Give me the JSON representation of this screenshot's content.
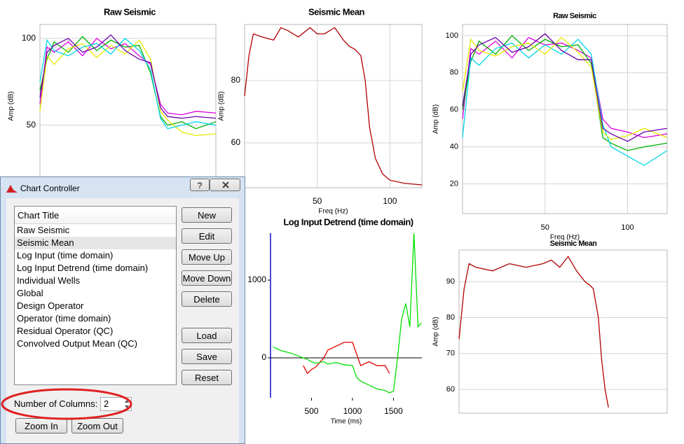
{
  "chart_data": [
    {
      "type": "line",
      "title": "Raw Seismic",
      "y_label": "Amp (dB)",
      "x": [
        0,
        5,
        10,
        20,
        30,
        40,
        50,
        60,
        70,
        78,
        85,
        90,
        100,
        110,
        124
      ],
      "xlim": [
        0,
        124
      ],
      "ylim": [
        14,
        108
      ],
      "yticks": [
        50,
        100
      ],
      "grid": true,
      "series": [
        {
          "color": "#e000e0",
          "values": [
            62,
            95,
            92,
            98,
            90,
            100,
            94,
            97,
            90,
            85,
            62,
            57,
            56,
            58,
            57
          ]
        },
        {
          "color": "#00b000",
          "values": [
            70,
            88,
            98,
            92,
            101,
            93,
            99,
            95,
            96,
            80,
            55,
            50,
            52,
            48,
            52
          ]
        },
        {
          "color": "#e8e800",
          "values": [
            58,
            90,
            85,
            94,
            97,
            89,
            96,
            91,
            99,
            88,
            58,
            53,
            46,
            44,
            45
          ]
        },
        {
          "color": "#00d8e8",
          "values": [
            75,
            99,
            93,
            90,
            95,
            97,
            91,
            100,
            93,
            82,
            54,
            48,
            50,
            52,
            50
          ]
        },
        {
          "color": "#6a00a8",
          "values": [
            66,
            92,
            96,
            100,
            92,
            95,
            102,
            93,
            88,
            86,
            60,
            55,
            54,
            55,
            54
          ]
        }
      ]
    },
    {
      "type": "line",
      "title": "Seismic Mean",
      "x_label": "Freq (Hz)",
      "y_label": "Amp (dB)",
      "x": [
        0,
        3,
        6,
        12,
        20,
        25,
        30,
        37,
        45,
        50,
        55,
        62,
        68,
        72,
        76,
        80,
        83,
        86,
        90,
        95,
        100,
        110,
        122
      ],
      "xlim": [
        0,
        122
      ],
      "ylim": [
        45.6,
        98
      ],
      "xticks": [
        50,
        100
      ],
      "yticks": [
        60,
        80
      ],
      "grid": true,
      "series": [
        {
          "color": "#b00000",
          "values": [
            75,
            88,
            95,
            94,
            93,
            97,
            96,
            94,
            97,
            95,
            95,
            97,
            93,
            91,
            90,
            88,
            80,
            65,
            55,
            50,
            48,
            47,
            46.5
          ]
        }
      ]
    },
    {
      "type": "line",
      "title": "Raw Seismic",
      "x_label": "Freq (Hz)",
      "y_label": "Amp (dB)",
      "x": [
        0,
        5,
        10,
        20,
        30,
        40,
        50,
        60,
        70,
        78,
        85,
        90,
        100,
        110,
        124
      ],
      "xlim": [
        0,
        124
      ],
      "ylim": [
        4,
        106
      ],
      "xticks": [
        50,
        100
      ],
      "yticks": [
        20,
        40,
        60,
        80,
        100
      ],
      "grid": true,
      "series": [
        {
          "color": "#e000e0",
          "values": [
            55,
            93,
            90,
            97,
            88,
            99,
            95,
            96,
            92,
            88,
            55,
            50,
            48,
            45,
            47
          ]
        },
        {
          "color": "#00b000",
          "values": [
            60,
            86,
            97,
            90,
            100,
            92,
            98,
            94,
            95,
            85,
            45,
            42,
            38,
            40,
            42
          ]
        },
        {
          "color": "#00d8e8",
          "values": [
            45,
            88,
            84,
            93,
            96,
            88,
            95,
            90,
            98,
            90,
            52,
            40,
            35,
            30,
            38
          ]
        },
        {
          "color": "#e8e800",
          "values": [
            70,
            98,
            92,
            89,
            94,
            96,
            90,
            99,
            91,
            83,
            48,
            44,
            46,
            50,
            45
          ]
        },
        {
          "color": "#6a00a8",
          "values": [
            62,
            90,
            95,
            99,
            91,
            94,
            101,
            92,
            87,
            87,
            50,
            47,
            43,
            48,
            50
          ]
        }
      ]
    },
    {
      "type": "line",
      "title": "Log Input Detrend (time domain)",
      "x_label": "Time (ms)",
      "x": [
        30,
        140,
        250,
        400,
        450,
        500,
        550,
        650,
        700,
        800,
        900,
        1000,
        1050,
        1100,
        1200,
        1300,
        1400,
        1450,
        1500,
        1550,
        1600,
        1650,
        1700,
        1750,
        1800,
        1840
      ],
      "xlim": [
        0,
        1847
      ],
      "ylim": [
        -514,
        1604
      ],
      "xticks": [
        500,
        1000,
        1500
      ],
      "yticks": [
        0,
        1000
      ],
      "grid": false,
      "zero_line": true,
      "series": [
        {
          "color": "#e00000",
          "values": [
            null,
            null,
            null,
            -100,
            -200,
            -150,
            -120,
            0,
            100,
            150,
            200,
            200,
            50,
            -100,
            -50,
            -100,
            -100,
            -200,
            null,
            null,
            null,
            null,
            null,
            null,
            null,
            null
          ]
        },
        {
          "color": "#00e000",
          "values": [
            140,
            90,
            60,
            0,
            -20,
            -50,
            -70,
            -50,
            -80,
            -60,
            -90,
            -100,
            -250,
            -300,
            -350,
            -400,
            -420,
            -450,
            -430,
            0,
            500,
            700,
            400,
            1600,
            400,
            450
          ]
        }
      ]
    },
    {
      "type": "line",
      "title": "Seismic Mean",
      "y_label": "Amp (dB)",
      "x": [
        0,
        3,
        6,
        10,
        20,
        30,
        40,
        50,
        55,
        60,
        65,
        70,
        75,
        78,
        80,
        83,
        85,
        87,
        89
      ],
      "xlim": [
        0,
        124
      ],
      "ylim": [
        53.4,
        98.8
      ],
      "yticks": [
        60,
        70,
        80,
        90
      ],
      "grid": true,
      "series": [
        {
          "color": "#b00000",
          "values": [
            74,
            88,
            95,
            94,
            93,
            95,
            94,
            95,
            96,
            94,
            97,
            93,
            90,
            89,
            88,
            80,
            68,
            60,
            55
          ]
        }
      ]
    }
  ],
  "dialog": {
    "title": "Chart Controller",
    "help_button": "?",
    "list_header": "Chart Title",
    "items": [
      "Raw Seismic",
      "Seismic Mean",
      "Log Input (time domain)",
      "Log Input Detrend (time domain)",
      "Individual Wells",
      "Global",
      "Design Operator",
      "Operator (time domain)",
      "Residual Operator (QC)",
      "Convolved Output Mean (QC)"
    ],
    "selected_index": 1,
    "buttons": [
      "New",
      "Edit",
      "Move Up",
      "Move Down",
      "Delete",
      "Load",
      "Save",
      "Reset"
    ],
    "columns_label": "Number of Columns:",
    "columns_value": 2,
    "zoom_buttons": [
      "Zoom In",
      "Zoom Out"
    ]
  }
}
